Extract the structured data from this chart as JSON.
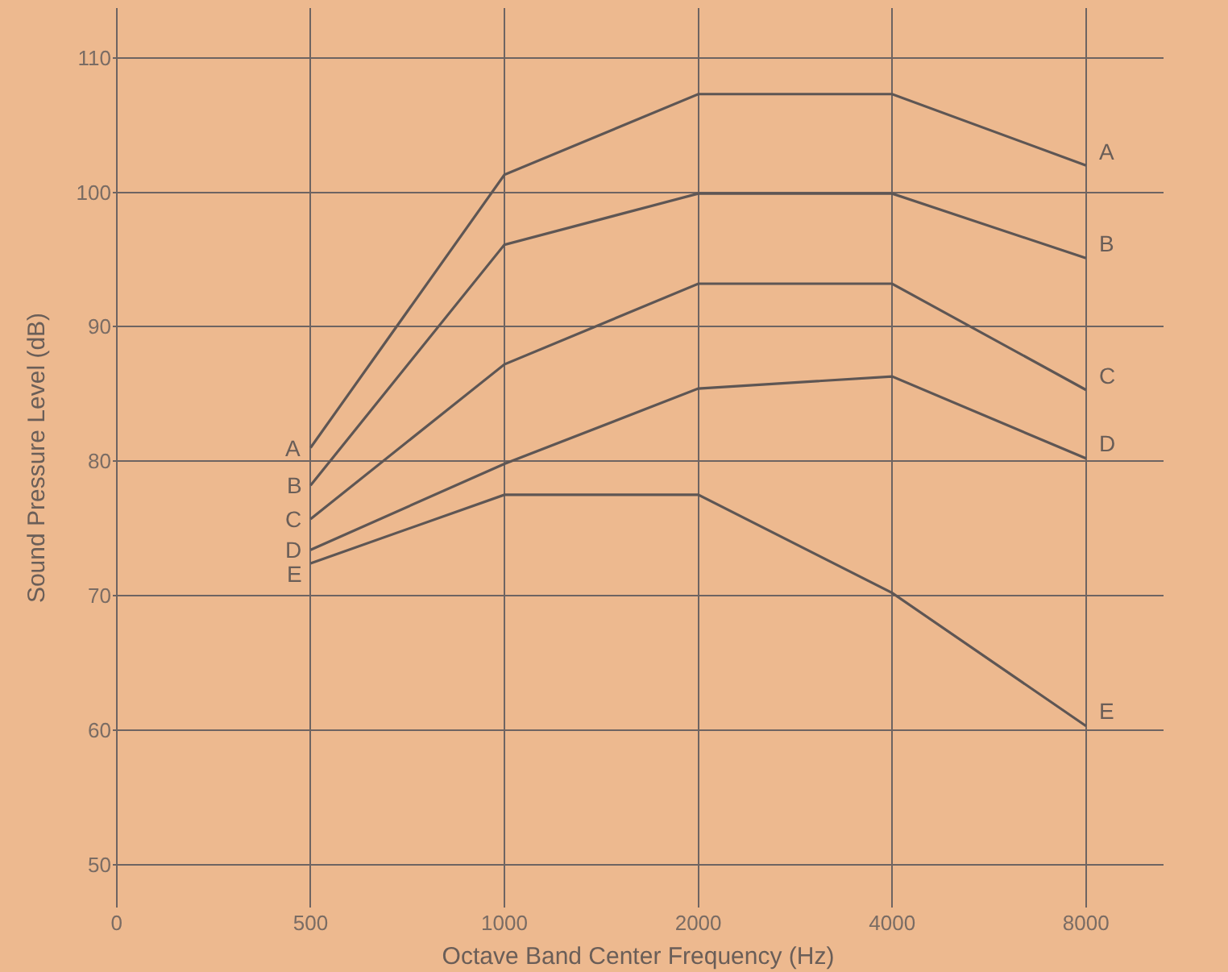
{
  "chart_data": {
    "type": "line",
    "xlabel": "Octave Band Center Frequency (Hz)",
    "ylabel": "Sound Pressure Level (dB)",
    "categories": [
      "0",
      "500",
      "1000",
      "2000",
      "4000",
      "8000"
    ],
    "ylim": [
      46.8,
      113.7
    ],
    "yticks": [
      50,
      60,
      70,
      80,
      90,
      100,
      110
    ],
    "grid": true,
    "legend": false,
    "marker": "none",
    "line_style": "solid",
    "series": [
      {
        "name": "A",
        "color": "#5e5654",
        "values": [
          null,
          81,
          101.3,
          107.3,
          107.3,
          102
        ]
      },
      {
        "name": "B",
        "color": "#5e5654",
        "values": [
          null,
          78.2,
          96.1,
          99.9,
          99.9,
          95.1
        ]
      },
      {
        "name": "C",
        "color": "#5e5654",
        "values": [
          null,
          75.7,
          87.2,
          93.2,
          93.2,
          85.3
        ]
      },
      {
        "name": "D",
        "color": "#5e5654",
        "values": [
          null,
          73.4,
          79.8,
          85.4,
          86.3,
          80.2
        ]
      },
      {
        "name": "E",
        "color": "#5e5654",
        "values": [
          null,
          72.4,
          77.5,
          77.5,
          70.2,
          60.3
        ]
      }
    ]
  }
}
